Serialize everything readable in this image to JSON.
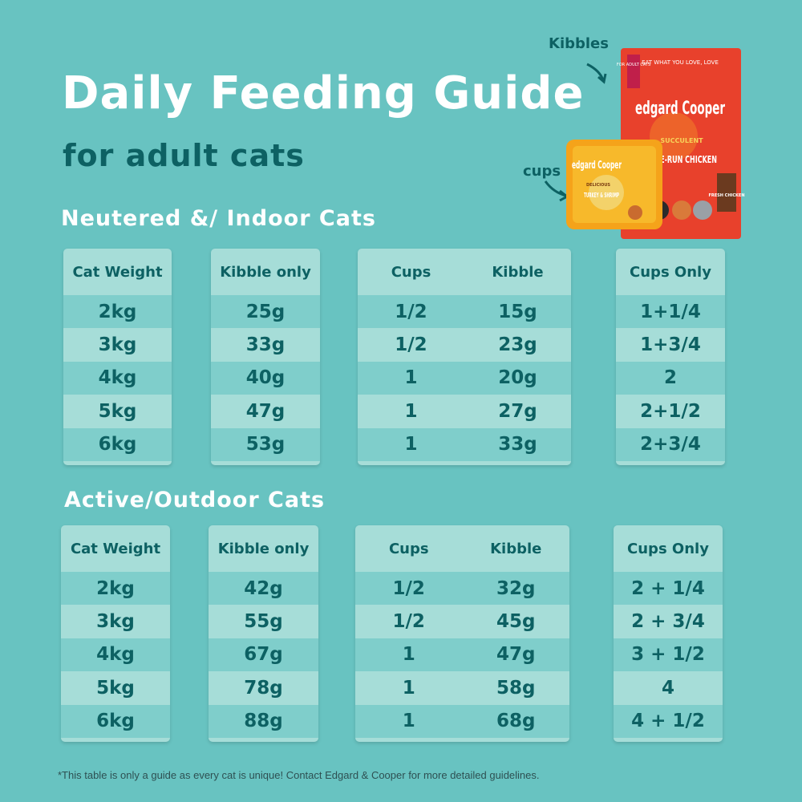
{
  "title": "Daily Feeding Guide",
  "subtitle": "for adult cats",
  "callouts": {
    "kibbles": "Kibbles",
    "cups": "cups"
  },
  "product": {
    "bag_brand": "edgard Cooper",
    "bag_tagline": "EAT WHAT YOU LOVE, LOVE",
    "bag_badge": "FOR ADULT CATS",
    "bag_flavor_top": "SUCCULENT",
    "bag_flavor": "FREE-RUN CHICKEN",
    "bag_fresh": "FRESH CHICKEN",
    "cup_brand": "edgard Cooper",
    "cup_flavor": "TURKEY & SHRIMP",
    "cup_delicious": "DELICIOUS"
  },
  "sections": [
    {
      "heading": "Neutered &/ Indoor Cats",
      "weight": {
        "header": "Cat Weight",
        "rows": [
          "2kg",
          "3kg",
          "4kg",
          "5kg",
          "6kg"
        ]
      },
      "kibble_only": {
        "header": "Kibble only",
        "rows": [
          "25g",
          "33g",
          "40g",
          "47g",
          "53g"
        ]
      },
      "mixed": {
        "headers": [
          "Cups",
          "Kibble"
        ],
        "rows": [
          [
            "1/2",
            "15g"
          ],
          [
            "1/2",
            "23g"
          ],
          [
            "1",
            "20g"
          ],
          [
            "1",
            "27g"
          ],
          [
            "1",
            "33g"
          ]
        ]
      },
      "cups_only": {
        "header": "Cups Only",
        "rows": [
          "1+1/4",
          "1+3/4",
          "2",
          "2+1/2",
          "2+3/4"
        ]
      }
    },
    {
      "heading": "Active/Outdoor Cats",
      "weight": {
        "header": "Cat Weight",
        "rows": [
          "2kg",
          "3kg",
          "4kg",
          "5kg",
          "6kg"
        ]
      },
      "kibble_only": {
        "header": "Kibble only",
        "rows": [
          "42g",
          "55g",
          "67g",
          "78g",
          "88g"
        ]
      },
      "mixed": {
        "headers": [
          "Cups",
          "Kibble"
        ],
        "rows": [
          [
            "1/2",
            "32g"
          ],
          [
            "1/2",
            "45g"
          ],
          [
            "1",
            "47g"
          ],
          [
            "1",
            "58g"
          ],
          [
            "1",
            "68g"
          ]
        ]
      },
      "cups_only": {
        "header": "Cups Only",
        "rows": [
          "2 + 1/4",
          "2 + 3/4",
          "3 + 1/2",
          "4",
          "4 + 1/2"
        ]
      }
    }
  ],
  "footnote": "*This table is only a guide as every cat is unique! Contact Edgard & Cooper for more detailed guidelines.",
  "colors": {
    "background": "#68c3c1",
    "card": "#a6ddd8",
    "card_stripe": "#7fcecb",
    "text_dark": "#0d6163",
    "bag": "#e8412c"
  }
}
